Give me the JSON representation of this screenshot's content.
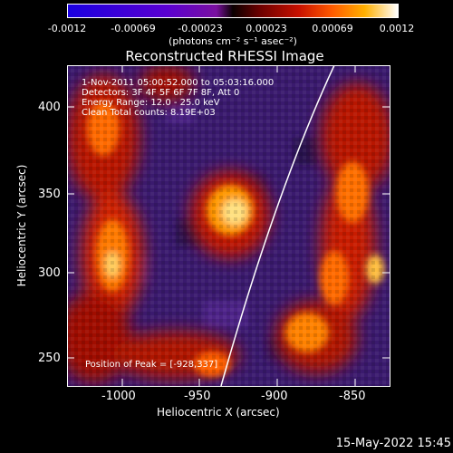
{
  "colorbar": {
    "ticks": [
      "-0.0012",
      "-0.00069",
      "-0.00023",
      "0.00023",
      "0.00069",
      "0.0012"
    ],
    "units": "(photons cm⁻² s⁻¹ asec⁻²)"
  },
  "title": "Reconstructed RHESSI Image",
  "info": {
    "time": "1-Nov-2011 05:00:52.000 to 05:03:16.000",
    "detectors": "Detectors: 3F 4F 5F 6F 7F 8F, Att 0",
    "energy": "Energy Range: 12.0 - 25.0 keV",
    "clean": "Clean      Total counts: 8.19E+03",
    "peak": "Position of Peak = [-928,337]"
  },
  "axes": {
    "xlabel": "Heliocentric X (arcsec)",
    "ylabel": "Heliocentric Y (arcsec)",
    "xticks": [
      "-1000",
      "-950",
      "-900",
      "-850"
    ],
    "yticks": [
      "400",
      "350",
      "300",
      "250"
    ]
  },
  "timestamp": "15-May-2022 15:45"
}
